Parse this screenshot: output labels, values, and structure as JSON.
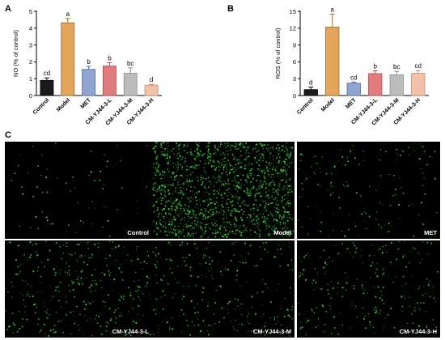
{
  "chart_data": [
    {
      "panel": "A",
      "type": "bar",
      "title": "",
      "xlabel": "",
      "ylabel": "NO (% of control)",
      "ylim": [
        0,
        5
      ],
      "yticks": [
        "0",
        "1",
        "2",
        "3",
        "4",
        "5"
      ],
      "categories": [
        "Control",
        "Model",
        "MET",
        "CM-YJ44-3-L",
        "CM-YJ44-3-M",
        "CM-YJ44-3-H"
      ],
      "values": [
        0.9,
        4.32,
        1.55,
        1.75,
        1.32,
        0.62
      ],
      "errors": [
        0.15,
        0.25,
        0.18,
        0.2,
        0.32,
        0.05
      ],
      "letters": [
        "cd",
        "a",
        "b",
        "b",
        "bc",
        "d"
      ],
      "colors": [
        "#1a1a1a",
        "#e3a55b",
        "#8fa5cf",
        "#e07c7d",
        "#bcbcbc",
        "#f2c1a8"
      ],
      "edges": [
        "#000000",
        "#9a6a2a",
        "#4a6aa8",
        "#b2484a",
        "#8a8a8a",
        "#c08a6c"
      ]
    },
    {
      "panel": "B",
      "type": "bar",
      "title": "",
      "xlabel": "",
      "ylabel": "ROS (% of control)",
      "ylim": [
        0,
        15
      ],
      "yticks": [
        "0",
        "3",
        "6",
        "9",
        "12",
        "15"
      ],
      "categories": [
        "Control",
        "Model",
        "MET",
        "CM-YJ44-3-L",
        "CM-YJ44-3-M",
        "CM-YJ44-3-H"
      ],
      "values": [
        1.05,
        12.2,
        2.2,
        3.9,
        3.7,
        3.95
      ],
      "errors": [
        0.45,
        2.3,
        0.2,
        0.5,
        0.6,
        0.5
      ],
      "letters": [
        "d",
        "a",
        "cd",
        "b",
        "bc",
        "cd"
      ],
      "colors": [
        "#1a1a1a",
        "#e3a55b",
        "#8fa5cf",
        "#e07c7d",
        "#bcbcbc",
        "#f2c1a8"
      ],
      "edges": [
        "#000000",
        "#9a6a2a",
        "#4a6aa8",
        "#b2484a",
        "#8a8a8a",
        "#c08a6c"
      ]
    }
  ],
  "panel_c": {
    "label": "C",
    "images": [
      {
        "label": "Control",
        "density": 70
      },
      {
        "label": "Model",
        "density": 1500
      },
      {
        "label": "MET",
        "density": 140
      },
      {
        "label": "CM-YJ44-3-L",
        "density": 330
      },
      {
        "label": "CM-YJ44-3-M",
        "density": 250
      },
      {
        "label": "CM-YJ44-3-H",
        "density": 230
      }
    ],
    "dot_color": "#39d13c",
    "background": "#000000"
  }
}
